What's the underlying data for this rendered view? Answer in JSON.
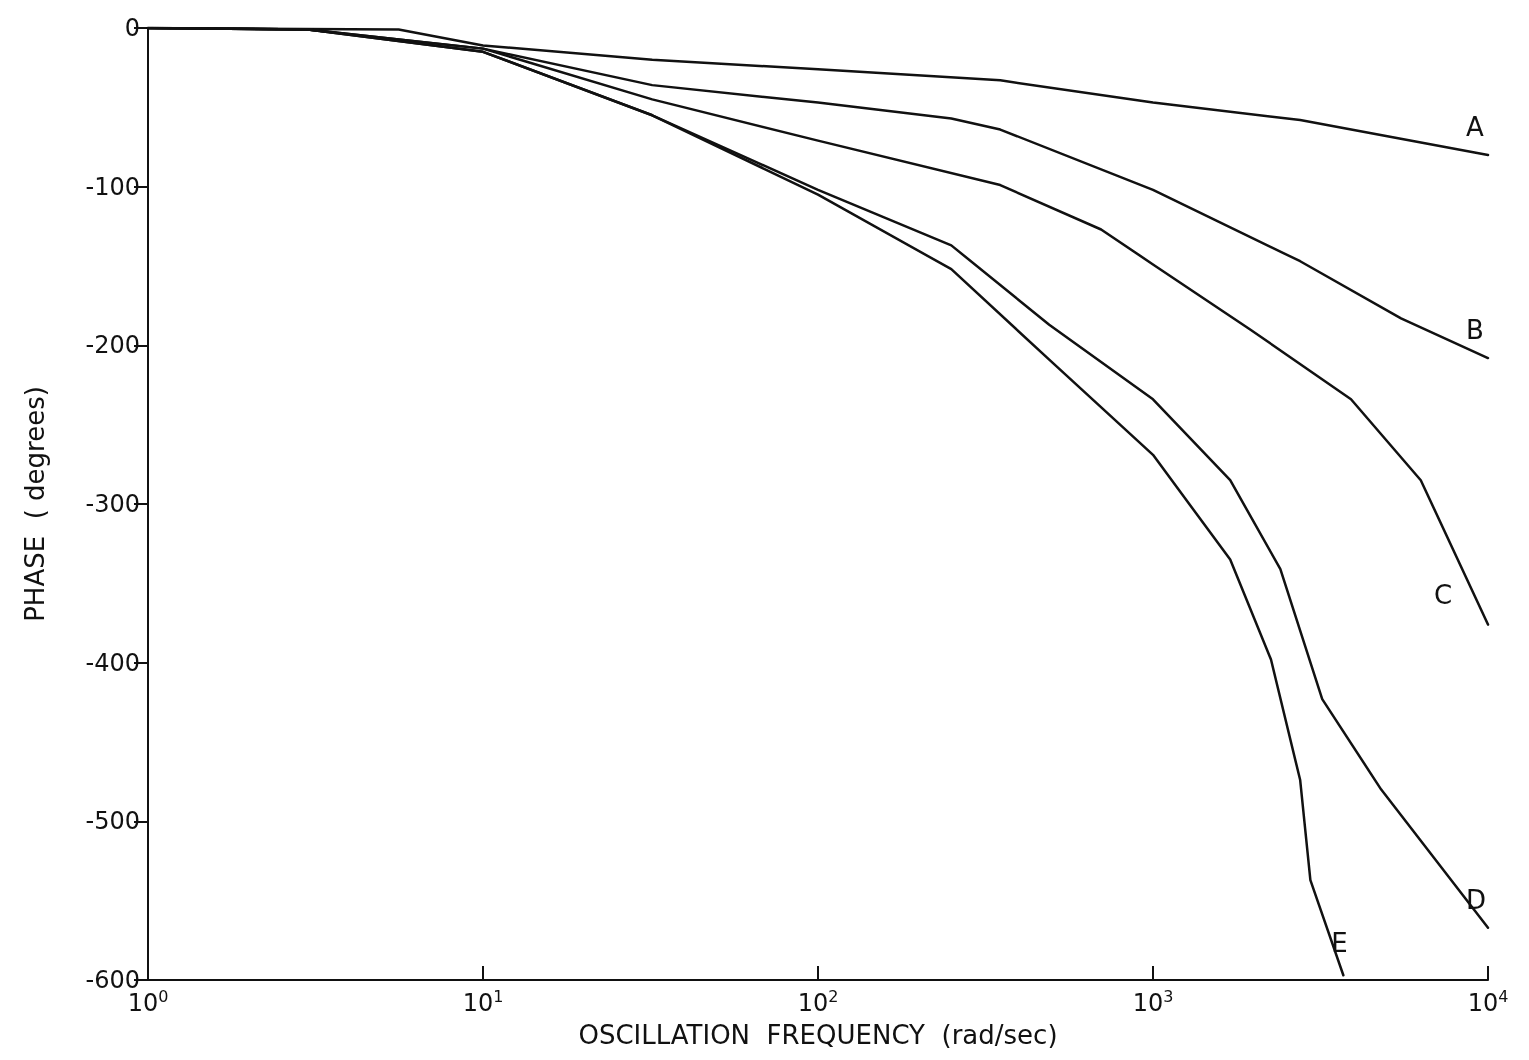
{
  "chart_data": {
    "type": "line",
    "xlabel": "OSCILLATION  FREQUENCY  (rad/sec)",
    "ylabel": "PHASE  ( degrees)",
    "log": "x",
    "grid": false,
    "legend": false,
    "marker": "none",
    "line_style": "solid",
    "xlim": [
      1,
      10000
    ],
    "xticks": [
      {
        "value": 1,
        "label": "10$^{0}$"
      },
      {
        "value": 10,
        "label": "10$^{1}$"
      },
      {
        "value": 100,
        "label": "10$^{2}$"
      },
      {
        "value": 1000,
        "label": "10$^{3}$"
      },
      {
        "value": 10000,
        "label": "10$^{4}$"
      }
    ],
    "ylim": [
      -600,
      0
    ],
    "yticks": [
      -600,
      -500,
      -400,
      -300,
      -200,
      -100,
      0
    ],
    "series": [
      {
        "name": "A",
        "color": "#111111",
        "x": [
          1,
          5.6,
          10,
          32,
          100,
          350,
          1000,
          2750,
          10000
        ],
        "values": [
          0,
          -1,
          -11,
          -20,
          -26,
          -33,
          -47,
          -58,
          -80
        ]
      },
      {
        "name": "B",
        "color": "#111111",
        "x": [
          1,
          3,
          10,
          32,
          100,
          250,
          350,
          1000,
          2750,
          5500,
          10000
        ],
        "values": [
          0,
          -1,
          -13,
          -36,
          -47,
          -57,
          -64,
          -102,
          -147,
          -183,
          -208
        ]
      },
      {
        "name": "C",
        "color": "#111111",
        "x": [
          1,
          3,
          10,
          32,
          100,
          350,
          700,
          1000,
          1950,
          3900,
          6300,
          10000
        ],
        "values": [
          0,
          -1,
          -13,
          -45,
          -71,
          -99,
          -127,
          -149,
          -190,
          -234,
          -285,
          -376
        ]
      },
      {
        "name": "D",
        "color": "#111111",
        "x": [
          1,
          3,
          10,
          32,
          100,
          250,
          490,
          1000,
          1700,
          2400,
          3200,
          4800,
          10000
        ],
        "values": [
          0,
          -1,
          -15,
          -55,
          -102,
          -137,
          -187,
          -234,
          -285,
          -341,
          -423,
          -480,
          -567
        ]
      },
      {
        "name": "E",
        "color": "#111111",
        "x": [
          1,
          3,
          10,
          32,
          100,
          250,
          490,
          1000,
          1700,
          2250,
          2750,
          2950,
          3700
        ],
        "values": [
          0,
          -1,
          -15,
          -55,
          -105,
          -152,
          -209,
          -269,
          -335,
          -398,
          -474,
          -537,
          -597
        ]
      }
    ]
  }
}
